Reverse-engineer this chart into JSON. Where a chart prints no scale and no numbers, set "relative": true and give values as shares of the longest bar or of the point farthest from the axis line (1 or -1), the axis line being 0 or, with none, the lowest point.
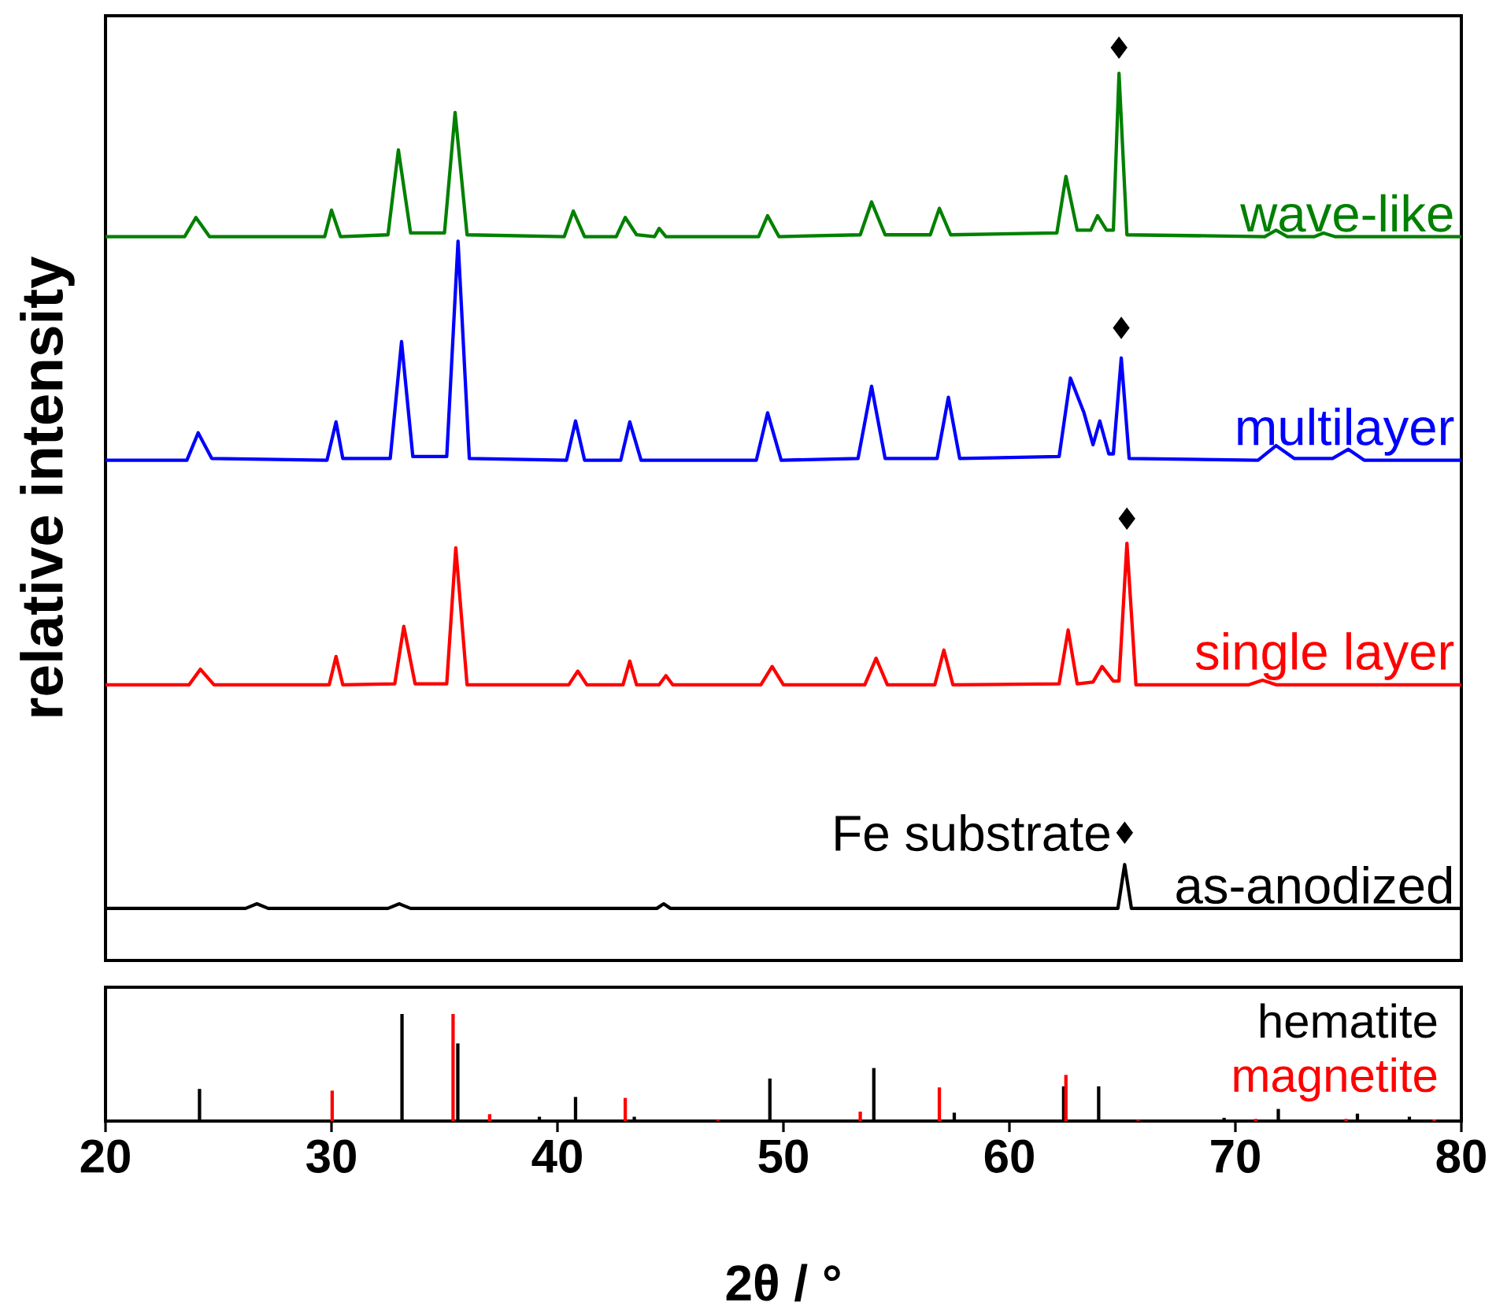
{
  "chart_data": [
    {
      "type": "line",
      "relative": true,
      "ylabel": "relative intensity",
      "xlim": [
        20,
        80
      ],
      "tick_labels": false,
      "annotations": [
        {
          "text": "Fe substrate",
          "x": 65.1,
          "y": 0.14
        }
      ],
      "series": [
        {
          "name": "wave-like",
          "color": "#008000",
          "x": [
            20,
            23.5,
            24.0,
            24.6,
            29.7,
            30.0,
            30.4,
            32.5,
            32.96,
            33.5,
            35.0,
            35.47,
            36.0,
            40.3,
            40.7,
            41.2,
            42.6,
            43.0,
            43.5,
            44.3,
            44.5,
            44.8,
            48.9,
            49.3,
            49.8,
            53.4,
            53.9,
            54.5,
            56.5,
            56.9,
            57.4,
            62.1,
            62.5,
            63.0,
            63.6,
            63.9,
            64.3,
            64.6,
            64.85,
            65.2,
            71.3,
            71.8,
            72.3,
            73.5,
            73.9,
            74.4,
            80
          ],
          "values": [
            0.793,
            0.793,
            0.814,
            0.793,
            0.793,
            0.822,
            0.793,
            0.795,
            0.888,
            0.797,
            0.797,
            0.929,
            0.795,
            0.793,
            0.821,
            0.793,
            0.793,
            0.814,
            0.795,
            0.793,
            0.802,
            0.793,
            0.793,
            0.816,
            0.793,
            0.795,
            0.831,
            0.795,
            0.795,
            0.824,
            0.795,
            0.797,
            0.859,
            0.8,
            0.8,
            0.816,
            0.8,
            0.8,
            0.972,
            0.795,
            0.793,
            0.8,
            0.793,
            0.793,
            0.797,
            0.793,
            0.793
          ]
        },
        {
          "name": "multilayer",
          "color": "#0000ff",
          "x": [
            20,
            23.6,
            24.1,
            24.7,
            29.8,
            30.2,
            30.5,
            32.6,
            33.1,
            33.6,
            35.1,
            35.6,
            36.1,
            40.4,
            40.8,
            41.2,
            42.8,
            43.2,
            43.7,
            48.8,
            49.3,
            49.9,
            53.3,
            53.9,
            54.5,
            56.8,
            57.3,
            57.8,
            62.2,
            62.7,
            63.3,
            63.7,
            64.0,
            64.4,
            64.6,
            64.95,
            65.3,
            71.0,
            71.8,
            72.6,
            74.3,
            75.0,
            75.7,
            80
          ],
          "values": [
            0.548,
            0.548,
            0.578,
            0.55,
            0.548,
            0.59,
            0.55,
            0.55,
            0.678,
            0.552,
            0.552,
            0.788,
            0.55,
            0.548,
            0.591,
            0.548,
            0.548,
            0.59,
            0.548,
            0.548,
            0.6,
            0.548,
            0.55,
            0.629,
            0.55,
            0.55,
            0.617,
            0.55,
            0.552,
            0.638,
            0.6,
            0.565,
            0.591,
            0.555,
            0.555,
            0.66,
            0.55,
            0.548,
            0.564,
            0.55,
            0.55,
            0.56,
            0.548,
            0.548
          ]
        },
        {
          "name": "single layer",
          "color": "#ff0000",
          "x": [
            20,
            23.7,
            24.2,
            24.8,
            29.9,
            30.2,
            30.5,
            32.8,
            33.2,
            33.7,
            35.1,
            35.5,
            36.0,
            40.5,
            40.9,
            41.3,
            42.9,
            43.2,
            43.5,
            44.5,
            44.8,
            45.1,
            49.0,
            49.5,
            50.0,
            53.6,
            54.1,
            54.6,
            56.7,
            57.1,
            57.5,
            62.2,
            62.6,
            63.0,
            63.7,
            64.1,
            64.6,
            64.85,
            65.2,
            65.6,
            70.6,
            71.2,
            71.8,
            80
          ],
          "values": [
            0.302,
            0.302,
            0.319,
            0.302,
            0.302,
            0.333,
            0.302,
            0.303,
            0.366,
            0.303,
            0.303,
            0.452,
            0.302,
            0.302,
            0.317,
            0.302,
            0.302,
            0.328,
            0.302,
            0.302,
            0.312,
            0.302,
            0.302,
            0.322,
            0.302,
            0.302,
            0.331,
            0.302,
            0.302,
            0.34,
            0.302,
            0.303,
            0.362,
            0.303,
            0.305,
            0.322,
            0.306,
            0.306,
            0.457,
            0.302,
            0.302,
            0.307,
            0.302,
            0.302
          ]
        },
        {
          "name": "as-anodized",
          "color": "#000000",
          "x": [
            20,
            26.2,
            26.7,
            27.2,
            32.5,
            33.0,
            33.5,
            44.4,
            44.7,
            45.0,
            64.8,
            65.1,
            65.4,
            80
          ],
          "values": [
            0.057,
            0.057,
            0.062,
            0.057,
            0.057,
            0.062,
            0.057,
            0.057,
            0.062,
            0.057,
            0.057,
            0.105,
            0.057,
            0.057
          ]
        },
        {
          "type": "scatter",
          "marker": "diamond",
          "color": "#000000",
          "x": [
            64.85,
            64.95,
            65.2,
            65.1
          ],
          "values": [
            1.0,
            0.693,
            0.484,
            0.14
          ]
        }
      ]
    },
    {
      "type": "bar",
      "relative": true,
      "xlabel": "2θ / °",
      "xlim": [
        20,
        80
      ],
      "xticks": [
        20,
        30,
        40,
        50,
        60,
        70,
        80
      ],
      "tick_labels": "x",
      "series": [
        {
          "name": "hematite",
          "color": "#000000",
          "x": [
            24.16,
            33.12,
            35.59,
            39.2,
            40.8,
            43.4,
            49.4,
            54.0,
            57.56,
            62.4,
            63.95,
            69.5,
            71.9,
            75.4,
            77.7
          ],
          "values": [
            0.3,
            1.0,
            0.725,
            0.04,
            0.225,
            0.04,
            0.397,
            0.495,
            0.078,
            0.324,
            0.324,
            0.03,
            0.113,
            0.069,
            0.04
          ]
        },
        {
          "name": "magnetite",
          "color": "#ff0000",
          "x": [
            30.03,
            35.38,
            37.0,
            43.0,
            47.1,
            53.4,
            56.9,
            62.5,
            65.7,
            70.9,
            74.9,
            78.8
          ],
          "values": [
            0.284,
            1.0,
            0.064,
            0.216,
            0.01,
            0.088,
            0.314,
            0.431,
            0.01,
            0.02,
            0.02,
            0.015
          ]
        }
      ]
    }
  ]
}
